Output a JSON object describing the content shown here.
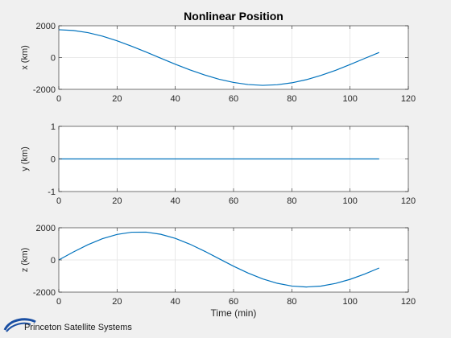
{
  "chart_data": [
    {
      "type": "line",
      "title": "Nonlinear Position",
      "xlabel": "",
      "ylabel": "x (km)",
      "xlim": [
        0,
        120
      ],
      "ylim": [
        -2000,
        2000
      ],
      "xticks": [
        0,
        20,
        40,
        60,
        80,
        100,
        120
      ],
      "yticks": [
        -2000,
        0,
        2000
      ],
      "grid": true,
      "series": [
        {
          "x": [
            0,
            5,
            10,
            15,
            20,
            25,
            30,
            35,
            40,
            45,
            50,
            55,
            60,
            65,
            70,
            75,
            80,
            85,
            90,
            95,
            100,
            105,
            110
          ],
          "values": [
            1750,
            1703,
            1565,
            1344,
            1054,
            714,
            343,
            -39,
            -419,
            -776,
            -1094,
            -1366,
            -1568,
            -1700,
            -1749,
            -1712,
            -1590,
            -1392,
            -1126,
            -805,
            -442,
            -57,
            322
          ]
        }
      ]
    },
    {
      "type": "line",
      "title": "",
      "xlabel": "",
      "ylabel": "y (km)",
      "xlim": [
        0,
        120
      ],
      "ylim": [
        -1,
        1
      ],
      "xticks": [
        0,
        20,
        40,
        60,
        80,
        100,
        120
      ],
      "yticks": [
        -1,
        0,
        1
      ],
      "grid": true,
      "series": [
        {
          "x": [
            0,
            110
          ],
          "values": [
            0,
            0
          ]
        }
      ]
    },
    {
      "type": "line",
      "title": "",
      "xlabel": "Time (min)",
      "ylabel": "z (km)",
      "xlim": [
        0,
        120
      ],
      "ylim": [
        -2000,
        2000
      ],
      "xticks": [
        0,
        20,
        40,
        60,
        80,
        100,
        120
      ],
      "yticks": [
        -2000,
        0,
        2000
      ],
      "grid": true,
      "series": [
        {
          "x": [
            0,
            5,
            10,
            15,
            20,
            25,
            30,
            35,
            40,
            45,
            50,
            55,
            60,
            65,
            70,
            75,
            80,
            85,
            90,
            95,
            100,
            105,
            110
          ],
          "values": [
            0,
            494,
            947,
            1320,
            1584,
            1723,
            1727,
            1594,
            1339,
            981,
            548,
            78,
            -391,
            -816,
            -1178,
            -1451,
            -1622,
            -1680,
            -1624,
            -1461,
            -1206,
            -877,
            -500
          ]
        }
      ]
    }
  ],
  "line_color": "#0072bd",
  "logo_text": "Princeton Satellite Systems"
}
